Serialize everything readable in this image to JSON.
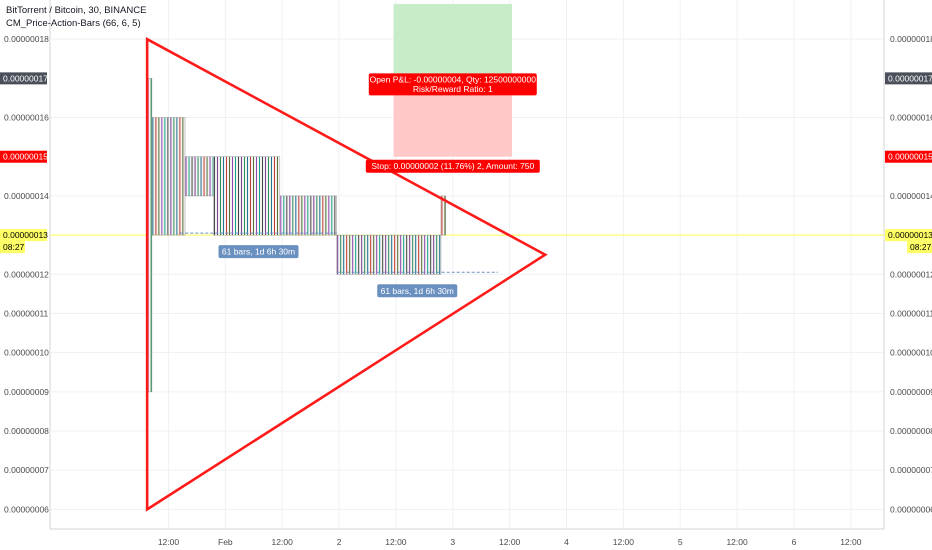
{
  "header": {
    "symbol_line": "BitTorrent / Bitcoin, 30, BINANCE",
    "indicator_line": "CM_Price-Action-Bars (66, 6, 5)"
  },
  "colors": {
    "background": "#ffffff",
    "grid": "#eef1f4",
    "axis_text": "#4a4a4a",
    "pattern_line": "#ff1a1a",
    "price_line": "#ffff4d",
    "price_tag": "#ffff66",
    "red_tag": "#ff0000",
    "dark_tag": "#4a4f5a",
    "profit_zone": "#c7ecc7",
    "loss_zone": "#ffc9c9",
    "range_label": "#6a90c0"
  },
  "chart_data": {
    "type": "line",
    "title": "BitTorrent / Bitcoin, 30, BINANCE",
    "ylabel": "",
    "ylim": [
      5.5e-09,
      1.9e-08
    ],
    "y_ticks": [
      "0.00000006",
      "0.00000007",
      "0.00000008",
      "0.00000009",
      "0.00000010",
      "0.00000011",
      "0.00000012",
      "0.00000014",
      "0.00000016",
      "0.00000018"
    ],
    "y_tick_values": [
      6e-09,
      7e-09,
      8e-09,
      9e-09,
      1e-08,
      1.1e-08,
      1.2e-08,
      1.4e-08,
      1.6e-08,
      1.8e-08
    ],
    "x_ticks": [
      "12:00",
      "Feb",
      "12:00",
      "2",
      "12:00",
      "3",
      "12:00",
      "4",
      "12:00",
      "5",
      "12:00",
      "6",
      "12:00"
    ],
    "x_tick_values": [
      12,
      24,
      36,
      48,
      60,
      72,
      84,
      96,
      108,
      120,
      132,
      144,
      156
    ],
    "xlim": [
      -13,
      163
    ],
    "grid": true,
    "price_series": {
      "name": "BitTorrent / Bitcoin",
      "segments": [
        {
          "x_start": 7.5,
          "x_end": 8.5,
          "low": 9e-09,
          "high": 1.7e-08
        },
        {
          "x_start": 8.5,
          "x_end": 15.5,
          "low": 1.3e-08,
          "high": 1.6e-08
        },
        {
          "x_start": 15.5,
          "x_end": 21.5,
          "low": 1.4e-08,
          "high": 1.5e-08
        },
        {
          "x_start": 21.5,
          "x_end": 35.5,
          "low": 1.3e-08,
          "high": 1.5e-08
        },
        {
          "x_start": 35.5,
          "x_end": 47.5,
          "low": 1.3e-08,
          "high": 1.4e-08
        },
        {
          "x_start": 47.5,
          "x_end": 69.5,
          "low": 1.2e-08,
          "high": 1.3e-08
        },
        {
          "x_start": 69.5,
          "x_end": 70.5,
          "low": 1.3e-08,
          "high": 1.4e-08
        }
      ]
    },
    "pattern_triangle": {
      "points": [
        [
          7.5,
          1.8e-08
        ],
        [
          91.5,
          1.25e-08
        ],
        [
          7.5,
          6e-09
        ]
      ]
    },
    "long_position": {
      "target_price": 1.89e-08,
      "entry_price": 1.7e-08,
      "stop_price": 1.5e-08,
      "x_start": 59.5,
      "x_end": 84.5,
      "label_pnl": "Open P&L: -0.00000004, Qty: 12500000000",
      "label_ratio": "Risk/Reward Ratio: 1",
      "label_stop": "Stop: 0.00000002 (11.76%) 2, Amount: 750"
    },
    "date_ranges": [
      {
        "label": "61 bars, 1d 6h 30m",
        "x_start": 14.5,
        "x_end": 47.5,
        "price": 1.3e-08
      },
      {
        "label": "61 bars, 1d 6h 30m",
        "x_start": 47.5,
        "x_end": 81.5,
        "price": 1.2e-08
      }
    ],
    "price_tags": [
      {
        "label": "0.00000017",
        "price": 1.7e-08,
        "style": "dark"
      },
      {
        "label": "0.00000015",
        "price": 1.5e-08,
        "style": "red"
      },
      {
        "label": "0.00000013",
        "price": 1.3e-08,
        "style": "yellow",
        "time": "08:27"
      }
    ]
  }
}
